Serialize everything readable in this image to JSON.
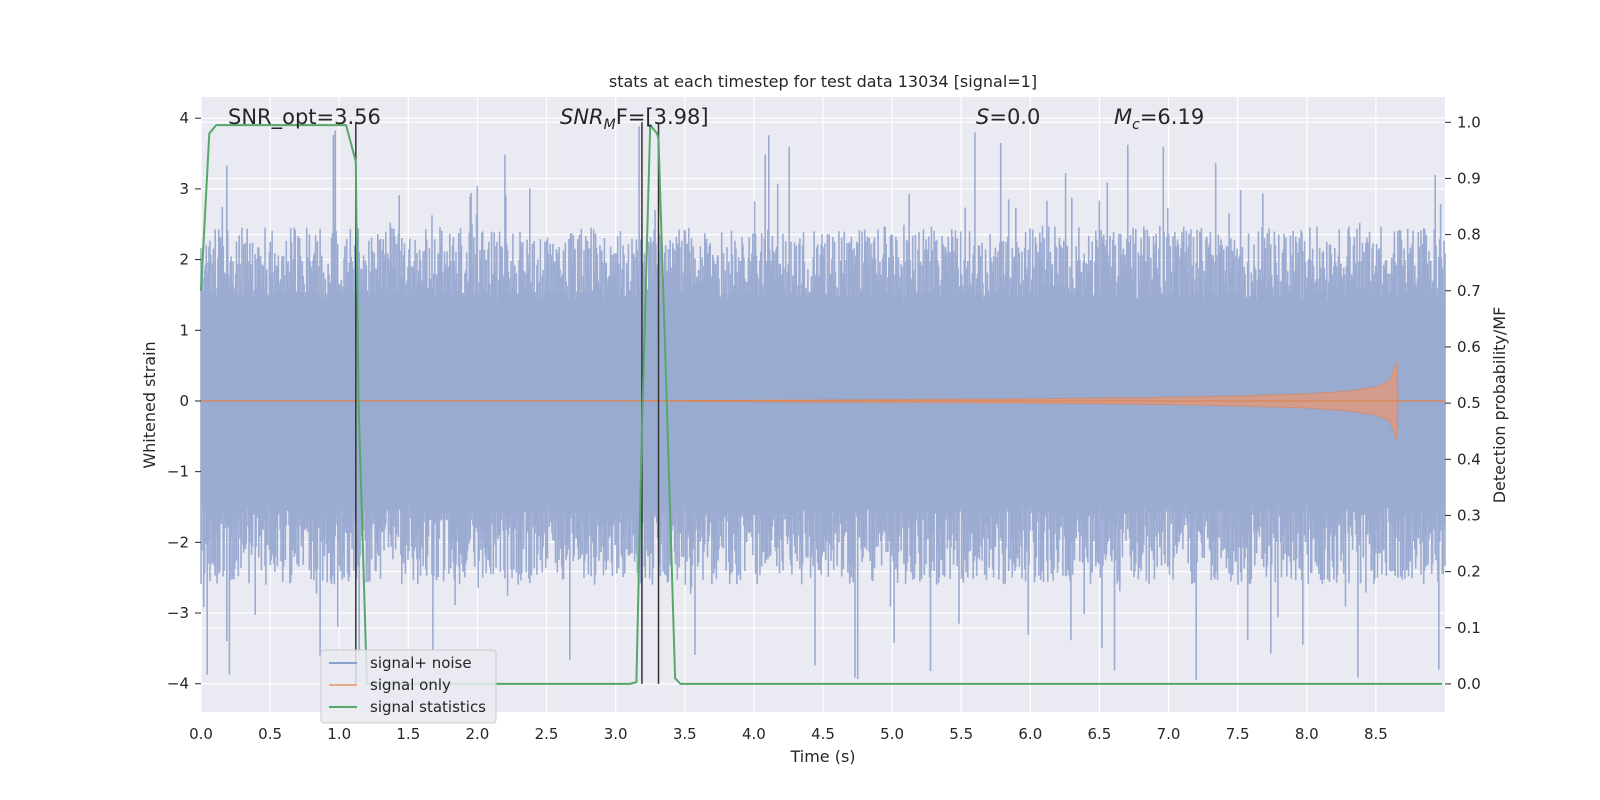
{
  "chart_data": {
    "type": "line",
    "title": "stats at each timestep for test data 13034 [signal=1]",
    "xlabel": "Time (s)",
    "ylabel": "Whitened strain",
    "y2label": "Detection probability/MF",
    "xlim": [
      0.0,
      9.0
    ],
    "ylim": [
      -4.4,
      4.3
    ],
    "y2lim": [
      -0.05,
      1.045
    ],
    "xticks": [
      "0.0",
      "0.5",
      "1.0",
      "1.5",
      "2.0",
      "2.5",
      "3.0",
      "3.5",
      "4.0",
      "4.5",
      "5.0",
      "5.5",
      "6.0",
      "6.5",
      "7.0",
      "7.5",
      "8.0",
      "8.5"
    ],
    "yticks": [
      "4",
      "3",
      "2",
      "1",
      "0",
      "−1",
      "−2",
      "−3",
      "−4"
    ],
    "y2ticks": [
      "1.0",
      "0.9",
      "0.8",
      "0.7",
      "0.6",
      "0.5",
      "0.4",
      "0.3",
      "0.2",
      "0.1",
      "0.0"
    ],
    "grid": true,
    "legend_position": "lower-left",
    "annotations": {
      "snr_opt": "SNR_opt=3.56",
      "snr_mf_main": "SNR",
      "snr_mf_sub": "M",
      "snr_mf_rest": "F=[3.98]",
      "s_main": "S",
      "s_rest": "=0.0",
      "mc_main": "M",
      "mc_sub": "c",
      "mc_rest": "=6.19"
    },
    "noise_envelope": {
      "typical_max": 1.9,
      "typical_min": -2.0,
      "peak_max": 3.9,
      "peak_min": -4.0
    },
    "signal_envelope": {
      "t": [
        0.0,
        3.0,
        4.0,
        5.0,
        6.0,
        7.0,
        7.5,
        8.0,
        8.3,
        8.5,
        8.6,
        8.65,
        8.66,
        9.0
      ],
      "amplitude": [
        0.0,
        0.0,
        0.01,
        0.02,
        0.03,
        0.05,
        0.07,
        0.1,
        0.14,
        0.2,
        0.28,
        0.55,
        0.0,
        0.0
      ]
    },
    "series": [
      {
        "name": "signal+ noise",
        "color": "#4c72b0",
        "axis": "left"
      },
      {
        "name": "signal only",
        "color": "#dd8452",
        "axis": "left"
      },
      {
        "name": "signal statistics",
        "color": "#55a868",
        "axis": "right",
        "x": [
          0.0,
          0.06,
          0.11,
          0.5,
          1.0,
          1.05,
          1.12,
          1.14,
          1.2,
          1.3,
          2.0,
          2.5,
          3.0,
          3.1,
          3.15,
          3.19,
          3.25,
          3.3,
          3.31,
          3.37,
          3.43,
          3.47,
          3.5,
          4.0,
          6.0,
          8.0,
          8.98
        ],
        "values": [
          0.7,
          0.98,
          0.995,
          0.995,
          0.995,
          0.995,
          0.93,
          0.5,
          0.0,
          0.0,
          0.0,
          0.0,
          0.0,
          0.0,
          0.003,
          0.45,
          0.995,
          0.98,
          0.97,
          0.5,
          0.01,
          0.0,
          0.0,
          0.0,
          0.0,
          0.0,
          0.0
        ]
      }
    ],
    "vertical_markers": [
      1.12,
      3.19,
      3.31
    ]
  },
  "colors": {
    "background": "#eaeaf2",
    "grid": "#ffffff",
    "noise": "#4c72b0",
    "signal": "#dd8452",
    "stats": "#55a868",
    "markers": "#333333"
  }
}
